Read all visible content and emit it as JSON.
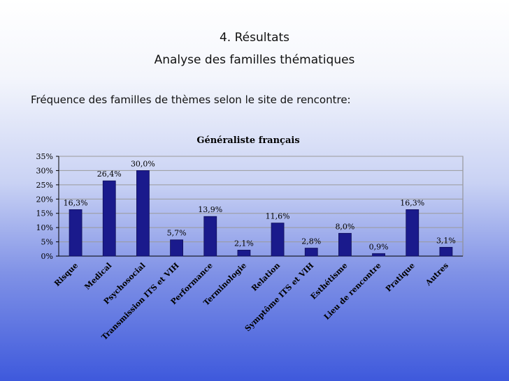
{
  "slide": {
    "title_line1": "4. Résultats",
    "title_line2": "Analyse des familles thématiques",
    "subtitle": "Fréquence des familles de thèmes selon le site de rencontre:"
  },
  "chart_data": {
    "type": "bar",
    "title": "Généraliste français",
    "categories": [
      "Risque",
      "Medical",
      "Psychosocial",
      "Transmission ITS et VIH",
      "Performance",
      "Terminologie",
      "Relation",
      "Symptôme ITS et VIH",
      "Esthétisme",
      "Lieu de rencontre",
      "Pratique",
      "Autres"
    ],
    "values": [
      16.3,
      26.4,
      30.0,
      5.7,
      13.9,
      2.1,
      11.6,
      2.8,
      8.0,
      0.9,
      16.3,
      3.1
    ],
    "value_labels": [
      "16,3%",
      "26,4%",
      "30,0%",
      "5,7%",
      "13,9%",
      "2,1%",
      "11,6%",
      "2,8%",
      "8,0%",
      "0,9%",
      "16,3%",
      "3,1%"
    ],
    "y_ticks": [
      "0%",
      "5%",
      "10%",
      "15%",
      "20%",
      "25%",
      "30%",
      "35%"
    ],
    "ylim": [
      0,
      35
    ],
    "grid": true,
    "bar_color": "#1a1a8c",
    "xlabel": "",
    "ylabel": ""
  }
}
